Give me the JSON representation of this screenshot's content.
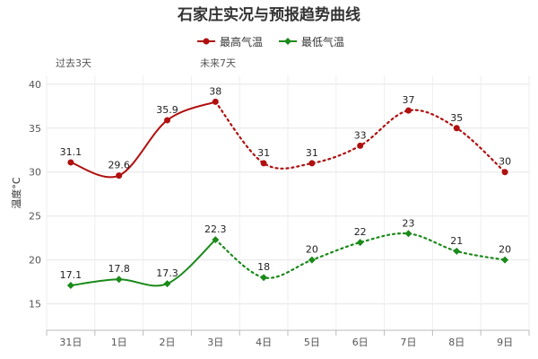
{
  "chart_data": {
    "type": "line",
    "title": "石家庄实况与预报趋势曲线",
    "ylabel": "温度°C",
    "categories": [
      "31日",
      "1日",
      "2日",
      "3日",
      "4日",
      "5日",
      "6日",
      "7日",
      "8日",
      "9日"
    ],
    "ylim": [
      12,
      41
    ],
    "yticks": [
      15,
      20,
      25,
      30,
      35,
      40
    ],
    "grid": true,
    "legend_position": "top-center",
    "period_labels": {
      "past": "过去3天",
      "future": "未来7天"
    },
    "past_count": 4,
    "series": [
      {
        "name": "最高气温",
        "color": "#b01010",
        "values": [
          31.1,
          29.6,
          35.9,
          38,
          31,
          31,
          33,
          37,
          35,
          30
        ]
      },
      {
        "name": "最低气温",
        "color": "#1a8a1a",
        "values": [
          17.1,
          17.8,
          17.3,
          22.3,
          18,
          20,
          22,
          23,
          21,
          20
        ]
      }
    ]
  }
}
